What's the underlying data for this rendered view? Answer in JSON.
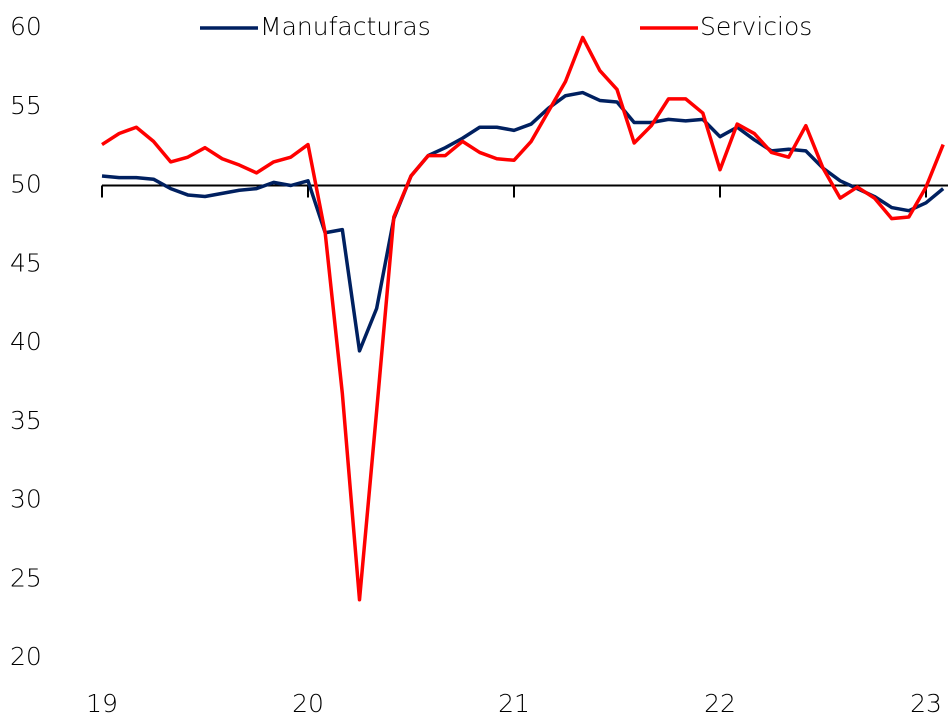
{
  "chart_data": {
    "type": "line",
    "categories": [
      "19",
      null,
      null,
      null,
      null,
      null,
      null,
      null,
      null,
      null,
      null,
      null,
      "20",
      null,
      null,
      null,
      null,
      null,
      null,
      null,
      null,
      null,
      null,
      null,
      "21",
      null,
      null,
      null,
      null,
      null,
      null,
      null,
      null,
      null,
      null,
      null,
      "22",
      null,
      null,
      null,
      null,
      null,
      null,
      null,
      null,
      null,
      null,
      null,
      "23",
      null
    ],
    "series": [
      {
        "name": "Manufacturas",
        "color": "#002060",
        "values": [
          50.6,
          50.5,
          50.5,
          50.4,
          49.8,
          49.4,
          49.3,
          49.5,
          49.7,
          49.8,
          50.2,
          50.0,
          50.3,
          47.0,
          47.2,
          39.5,
          42.2,
          47.9,
          50.6,
          51.9,
          52.4,
          53.0,
          53.7,
          53.7,
          53.5,
          53.9,
          54.9,
          55.7,
          55.9,
          55.4,
          55.3,
          54.0,
          54.0,
          54.2,
          54.1,
          54.2,
          53.1,
          53.7,
          52.9,
          52.2,
          52.3,
          52.2,
          51.1,
          50.3,
          49.8,
          49.3,
          48.6,
          48.4,
          48.9,
          49.8
        ]
      },
      {
        "name": "Servicios",
        "color": "#ff0000",
        "values": [
          52.6,
          53.3,
          53.7,
          52.8,
          51.5,
          51.8,
          52.4,
          51.7,
          51.3,
          50.8,
          51.5,
          51.8,
          52.6,
          47.0,
          36.8,
          23.7,
          35.7,
          48.0,
          50.6,
          51.9,
          51.9,
          52.8,
          52.1,
          51.7,
          51.6,
          52.8,
          54.7,
          56.6,
          59.4,
          57.3,
          56.1,
          52.7,
          53.8,
          55.5,
          55.5,
          54.6,
          51.0,
          53.9,
          53.3,
          52.1,
          51.8,
          53.8,
          51.1,
          49.2,
          49.9,
          49.2,
          47.9,
          48.0,
          49.9,
          52.6
        ]
      }
    ],
    "ylim": [
      20,
      60
    ],
    "yticks": [
      20,
      25,
      30,
      35,
      40,
      45,
      50,
      55,
      60
    ],
    "x_axis_at": 50,
    "grid": false,
    "legend": "top"
  }
}
